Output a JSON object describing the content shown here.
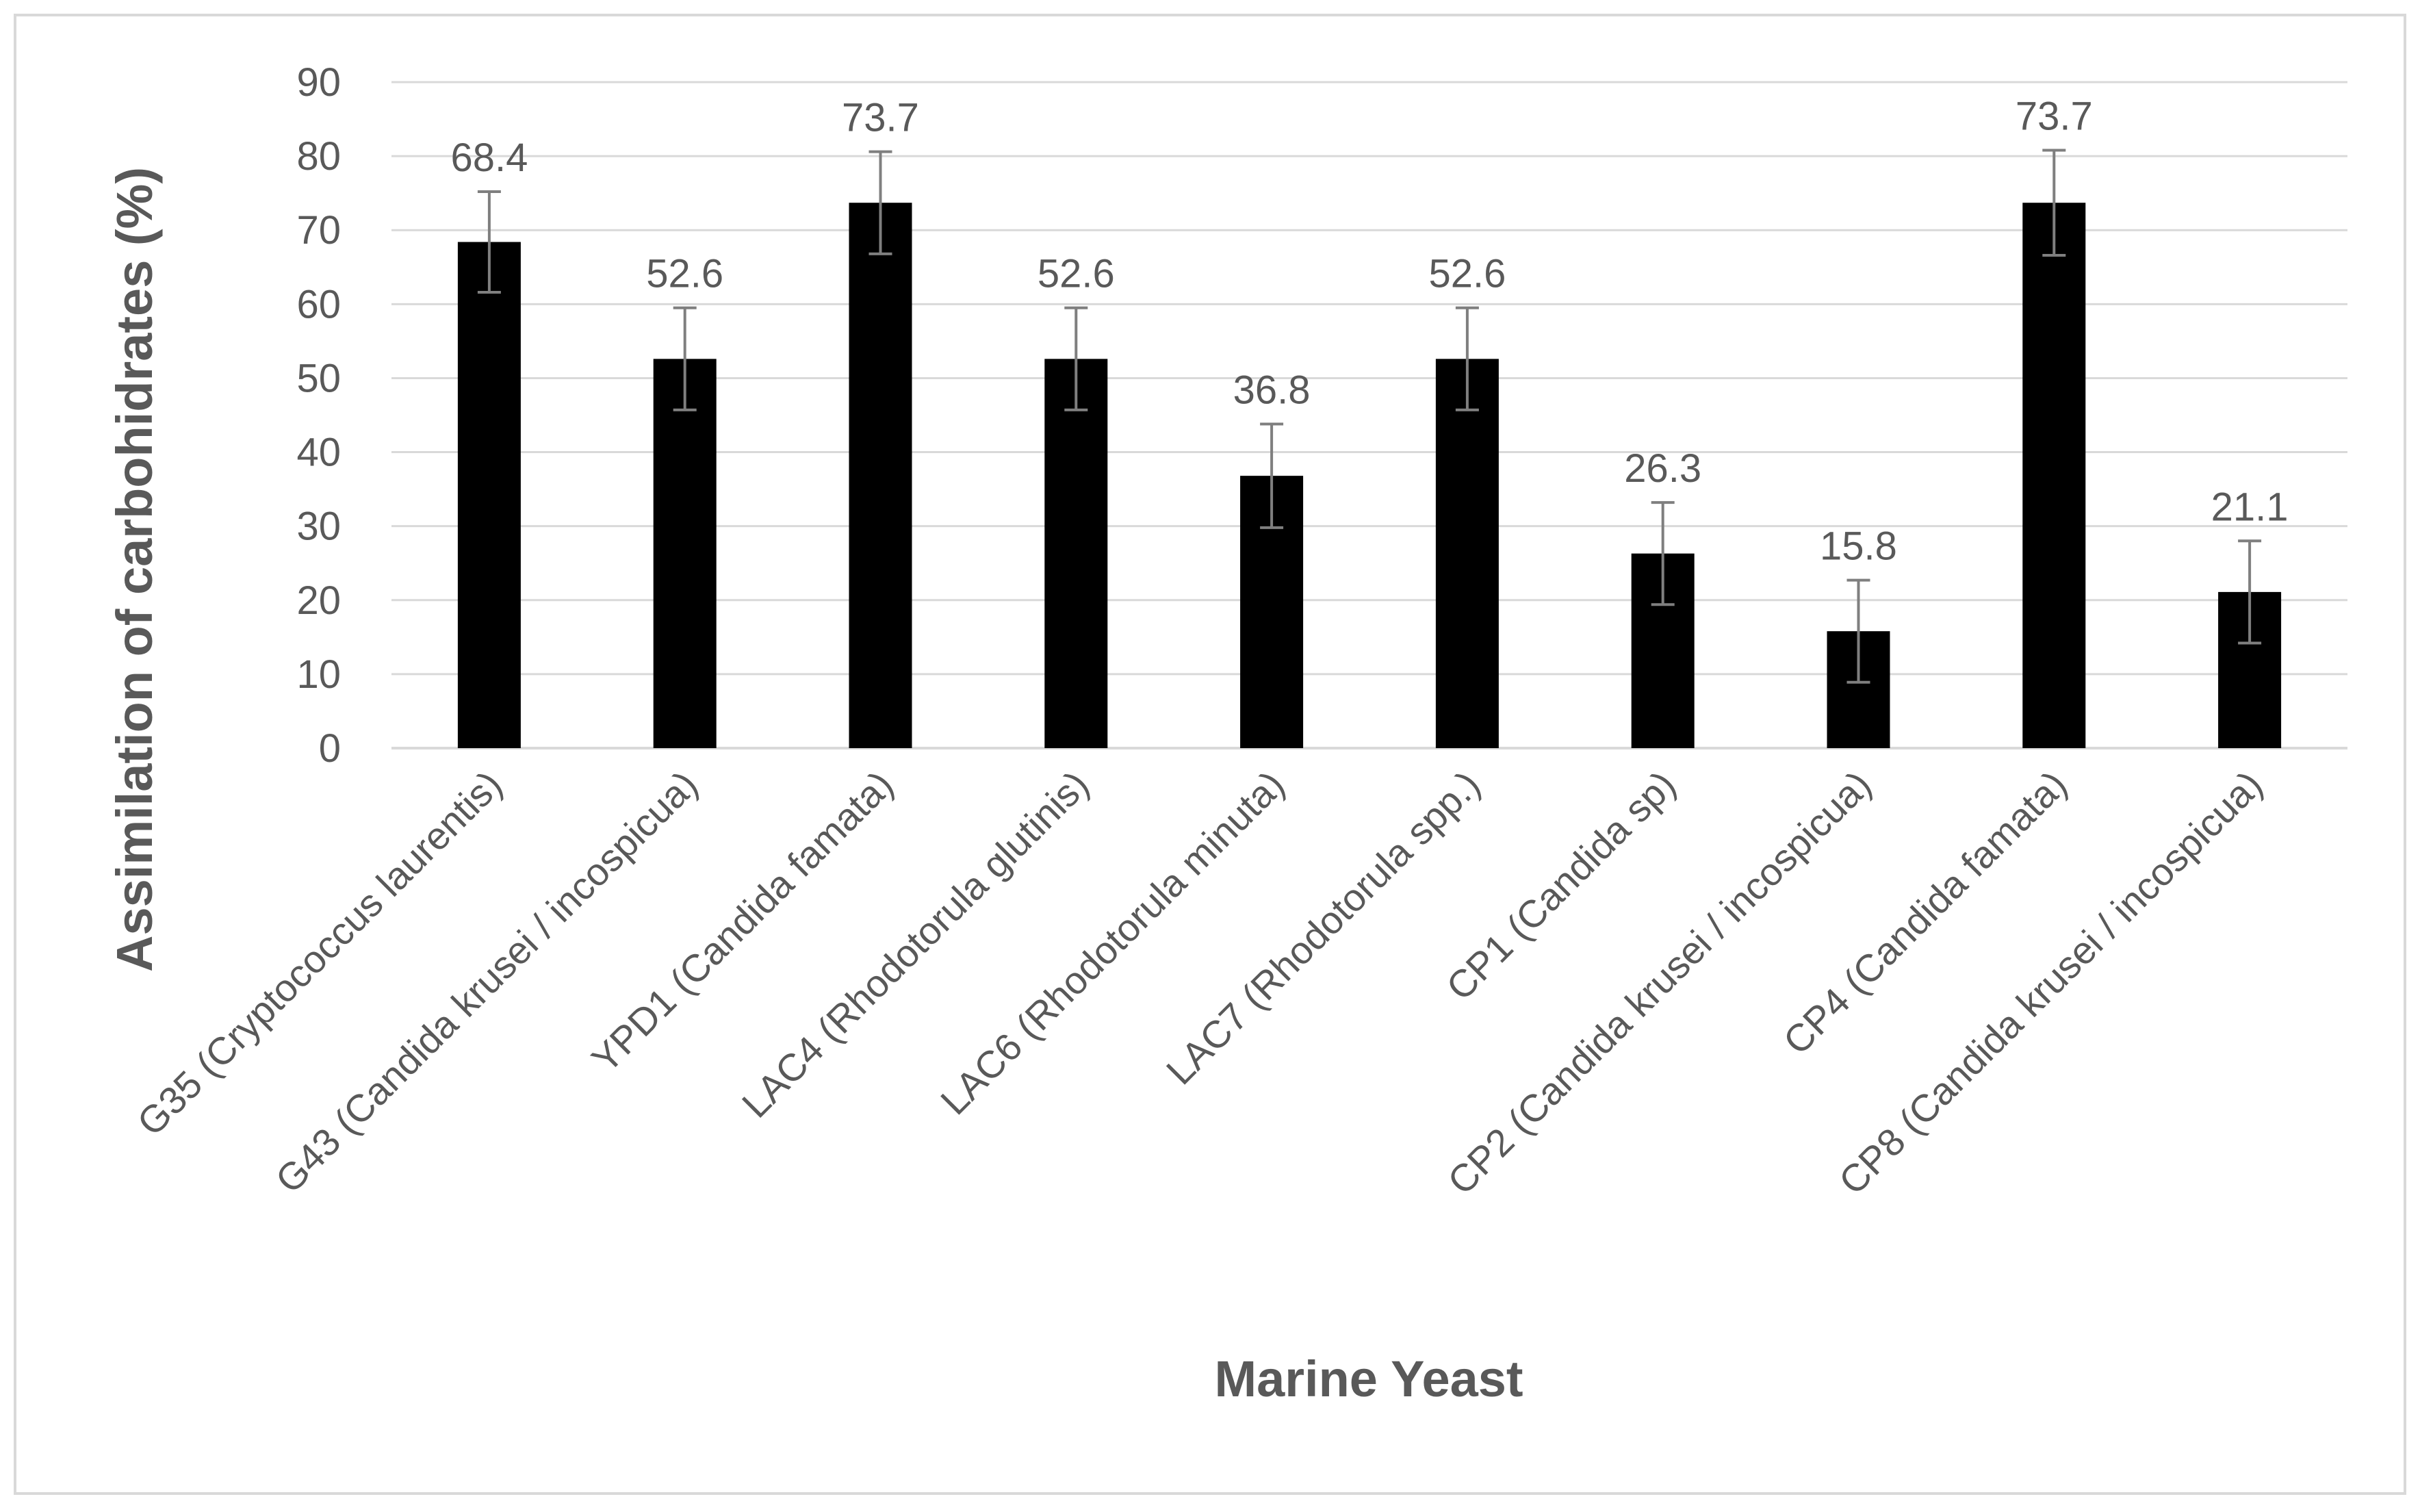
{
  "chart_data": {
    "type": "bar",
    "title": "",
    "xlabel": "Marine Yeast",
    "ylabel": "Assimilation of carbohidrates (%)",
    "ylim": [
      0,
      90
    ],
    "y_ticks": [
      0,
      10,
      20,
      30,
      40,
      50,
      60,
      70,
      80,
      90
    ],
    "grid": true,
    "legend": "none",
    "categories": [
      "G35 (Cryptococcus laurentis)",
      "G43 (Candida krusei / incospicua)",
      "YPD1 (Candida famata)",
      "LAC4 (Rhodotorula glutinis)",
      "LAC6 (Rhodotorula minuta)",
      "LAC7 (Rhodotorula spp.)",
      "CP1 (Candida sp)",
      "CP2 (Candida krusei / incospicua)",
      "CP4 (Candida famata)",
      "CP8 (Candida krusei / incospicua)"
    ],
    "values": [
      68.4,
      52.6,
      73.7,
      52.6,
      36.8,
      52.6,
      26.3,
      15.8,
      73.7,
      21.1
    ],
    "data_labels": [
      "68.4",
      "52.6",
      "73.7",
      "52.6",
      "36.8",
      "52.6",
      "26.3",
      "15.8",
      "73.7",
      "21.1"
    ],
    "error": [
      6.8,
      6.9,
      6.9,
      6.9,
      7.0,
      6.9,
      6.9,
      6.9,
      7.1,
      6.9
    ],
    "colors": {
      "bar": "#000000",
      "grid": "#d9d9d9",
      "text": "#595959",
      "error_bar": "#7f7f7f",
      "frame": "#d9d9d9"
    }
  }
}
